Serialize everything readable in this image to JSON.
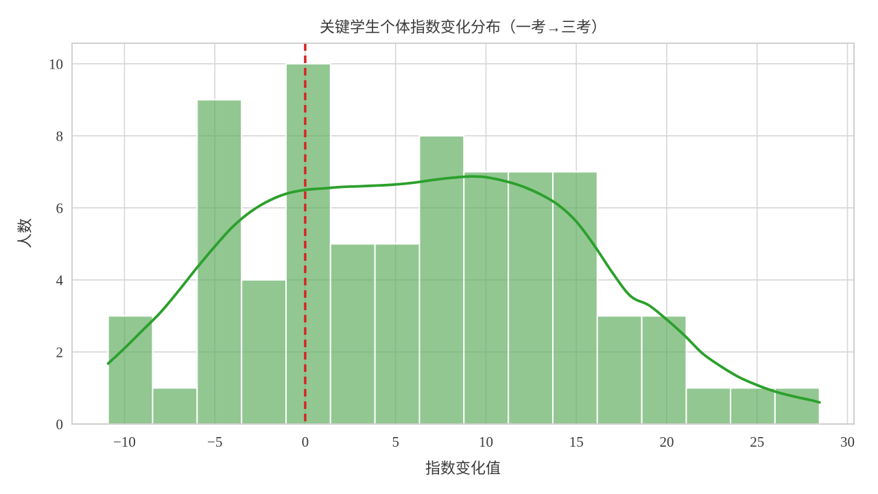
{
  "figure": {
    "title": "关键学生个体指数变化分布（一考→三考）",
    "xlabel": "指数变化值",
    "ylabel": "人数"
  },
  "chart_data": {
    "type": "bar",
    "subtype": "histogram_with_kde",
    "title": "关键学生个体指数变化分布（一考→三考）",
    "xlabel": "指数变化值",
    "ylabel": "人数",
    "xlim": [
      -12.9,
      30.36
    ],
    "ylim": [
      0,
      10.57
    ],
    "x_ticks": [
      -10,
      -5,
      0,
      5,
      10,
      15,
      20,
      25,
      30
    ],
    "y_ticks": [
      0,
      2,
      4,
      6,
      8,
      10
    ],
    "grid": true,
    "legend": "none",
    "bin_edges": [
      -10.9,
      -8.44,
      -5.98,
      -3.52,
      -1.06,
      1.4,
      3.86,
      6.32,
      8.78,
      11.24,
      13.7,
      16.16,
      18.62,
      21.08,
      23.53,
      25.99,
      28.45
    ],
    "counts": [
      3,
      1,
      9,
      4,
      10,
      5,
      5,
      8,
      7,
      7,
      7,
      3,
      3,
      1,
      1,
      1
    ],
    "kde_points": [
      [
        -10.9,
        1.68
      ],
      [
        -10,
        2.1
      ],
      [
        -9,
        2.6
      ],
      [
        -8,
        3.1
      ],
      [
        -7,
        3.7
      ],
      [
        -6,
        4.33
      ],
      [
        -5,
        4.93
      ],
      [
        -4,
        5.48
      ],
      [
        -3,
        5.9
      ],
      [
        -2,
        6.2
      ],
      [
        -1,
        6.4
      ],
      [
        0,
        6.5
      ],
      [
        1,
        6.54
      ],
      [
        2,
        6.58
      ],
      [
        3,
        6.6
      ],
      [
        4,
        6.62
      ],
      [
        5,
        6.65
      ],
      [
        6,
        6.7
      ],
      [
        7,
        6.77
      ],
      [
        8,
        6.83
      ],
      [
        9,
        6.87
      ],
      [
        9.5,
        6.87
      ],
      [
        10,
        6.85
      ],
      [
        11,
        6.75
      ],
      [
        12,
        6.6
      ],
      [
        13,
        6.38
      ],
      [
        14,
        6.08
      ],
      [
        15,
        5.62
      ],
      [
        16,
        4.95
      ],
      [
        17,
        4.2
      ],
      [
        18,
        3.55
      ],
      [
        19,
        3.3
      ],
      [
        20,
        2.9
      ],
      [
        21,
        2.45
      ],
      [
        22,
        1.95
      ],
      [
        23,
        1.6
      ],
      [
        24,
        1.3
      ],
      [
        25,
        1.08
      ],
      [
        26,
        0.9
      ],
      [
        27,
        0.77
      ],
      [
        28,
        0.66
      ],
      [
        28.45,
        0.6
      ]
    ],
    "reference_line": {
      "x": 0,
      "style": "dashed",
      "color": "#d62728"
    },
    "colors": {
      "bar_fill": "rgba(95,173,95,0.68)",
      "bar_edge": "#ffffff",
      "kde_line": "#2ca02c",
      "vline": "#d62728",
      "grid": "#d6d6d6",
      "spine": "#cbcbcb",
      "text": "#3a3a3a"
    }
  }
}
